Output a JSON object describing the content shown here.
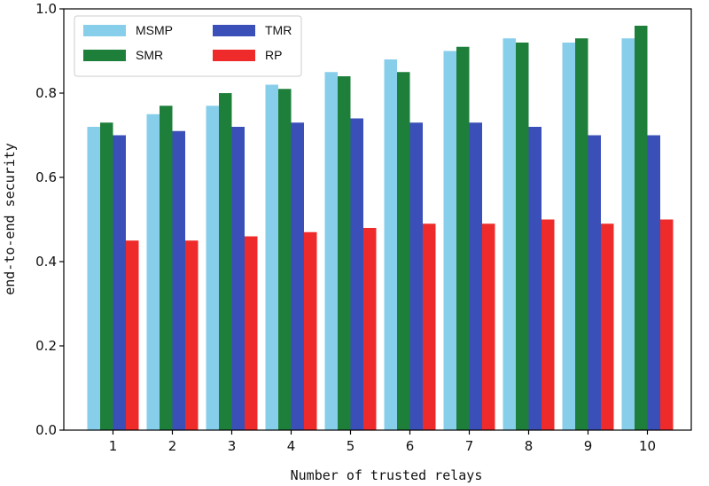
{
  "chart_data": {
    "type": "bar",
    "title": "",
    "xlabel": "Number of trusted relays",
    "ylabel": "end-to-end security",
    "categories": [
      "1",
      "2",
      "3",
      "4",
      "5",
      "6",
      "7",
      "8",
      "9",
      "10"
    ],
    "ylim": [
      0,
      1.0
    ],
    "yticks": [
      "0.0",
      "0.2",
      "0.4",
      "0.6",
      "0.8",
      "1.0"
    ],
    "grid": false,
    "legend_position": "top-left",
    "series": [
      {
        "name": "MSMP",
        "color": "#87ceeb",
        "values": [
          0.72,
          0.75,
          0.77,
          0.82,
          0.85,
          0.88,
          0.9,
          0.93,
          0.92,
          0.93
        ]
      },
      {
        "name": "SMR",
        "color": "#1e7f3a",
        "values": [
          0.73,
          0.77,
          0.8,
          0.81,
          0.84,
          0.85,
          0.91,
          0.92,
          0.93,
          0.96
        ]
      },
      {
        "name": "TMR",
        "color": "#3a4fb8",
        "values": [
          0.7,
          0.71,
          0.72,
          0.73,
          0.74,
          0.73,
          0.73,
          0.72,
          0.7,
          0.7
        ]
      },
      {
        "name": "RP",
        "color": "#ee2a2a",
        "values": [
          0.45,
          0.45,
          0.46,
          0.47,
          0.48,
          0.49,
          0.49,
          0.5,
          0.49,
          0.5
        ]
      }
    ]
  }
}
